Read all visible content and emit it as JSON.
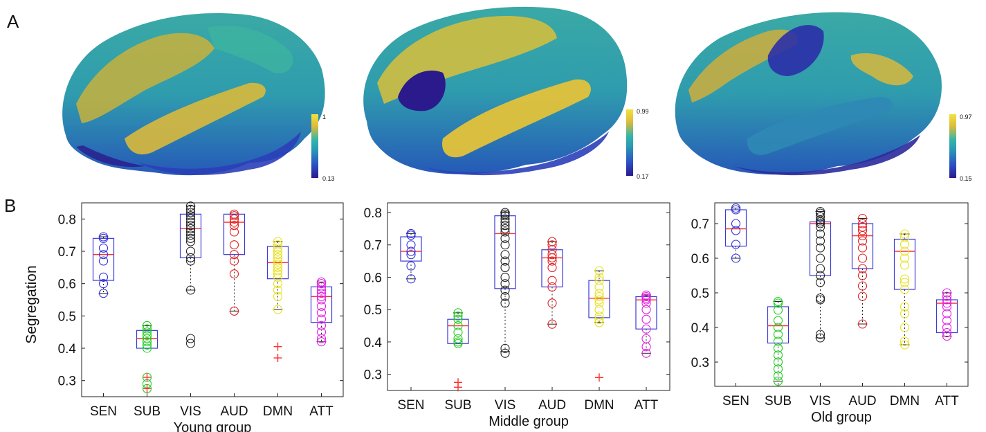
{
  "panel_labels": {
    "a": "A",
    "b": "B"
  },
  "brain_maps": [
    {
      "colorbar_max": "1",
      "colorbar_min": "0.13"
    },
    {
      "colorbar_max": "0.99",
      "colorbar_min": "0.17"
    },
    {
      "colorbar_max": "0.97",
      "colorbar_min": "0.15"
    }
  ],
  "colors": {
    "SEN": "#3030d8",
    "SUB": "#22cc22",
    "VIS": "#222222",
    "AUD": "#e02020",
    "DMN": "#e8e020",
    "ATT": "#e020e0",
    "median": "#ff3030",
    "box": "#3a3ad8",
    "colormap": [
      "#f3e23a",
      "#d9b93c",
      "#34b6a8",
      "#2a9bb3",
      "#2b4fc6",
      "#2a1a8c"
    ]
  },
  "chart_data": [
    {
      "type": "box",
      "title": "",
      "xlabel": "Young group",
      "ylabel": "Segregation",
      "ylim": [
        0.25,
        0.85
      ],
      "yticks": [
        0.3,
        0.4,
        0.5,
        0.6,
        0.7,
        0.8
      ],
      "categories": [
        "SEN",
        "SUB",
        "VIS",
        "AUD",
        "DMN",
        "ATT"
      ],
      "boxes": [
        {
          "q1": 0.61,
          "median": 0.69,
          "q3": 0.74,
          "lo": 0.57,
          "hi": 0.745,
          "points": [
            0.745,
            0.74,
            0.71,
            0.69,
            0.67,
            0.62,
            0.6,
            0.57
          ],
          "outliers": []
        },
        {
          "q1": 0.4,
          "median": 0.43,
          "q3": 0.455,
          "lo": 0.4,
          "hi": 0.47,
          "points": [
            0.47,
            0.46,
            0.45,
            0.44,
            0.43,
            0.42,
            0.41,
            0.4,
            0.31,
            0.29,
            0.275
          ],
          "outliers": [
            0.31,
            0.275
          ]
        },
        {
          "q1": 0.68,
          "median": 0.77,
          "q3": 0.815,
          "lo": 0.58,
          "hi": 0.84,
          "points": [
            0.84,
            0.83,
            0.82,
            0.81,
            0.8,
            0.79,
            0.78,
            0.77,
            0.76,
            0.75,
            0.74,
            0.73,
            0.7,
            0.68,
            0.67,
            0.58,
            0.43,
            0.415
          ],
          "outliers": []
        },
        {
          "q1": 0.69,
          "median": 0.79,
          "q3": 0.815,
          "lo": 0.515,
          "hi": 0.815,
          "points": [
            0.815,
            0.81,
            0.8,
            0.79,
            0.78,
            0.76,
            0.72,
            0.69,
            0.67,
            0.63,
            0.515
          ],
          "outliers": []
        },
        {
          "q1": 0.615,
          "median": 0.665,
          "q3": 0.715,
          "lo": 0.52,
          "hi": 0.73,
          "points": [
            0.73,
            0.72,
            0.71,
            0.7,
            0.69,
            0.68,
            0.67,
            0.66,
            0.65,
            0.64,
            0.63,
            0.62,
            0.6,
            0.58,
            0.56,
            0.52
          ],
          "outliers": [
            0.405,
            0.37
          ]
        },
        {
          "q1": 0.48,
          "median": 0.56,
          "q3": 0.59,
          "lo": 0.42,
          "hi": 0.605,
          "points": [
            0.605,
            0.6,
            0.59,
            0.58,
            0.57,
            0.56,
            0.55,
            0.53,
            0.51,
            0.49,
            0.47,
            0.45,
            0.43,
            0.42
          ],
          "outliers": []
        }
      ]
    },
    {
      "type": "box",
      "title": "",
      "xlabel": "Middle group",
      "ylabel": "",
      "ylim": [
        0.25,
        0.83
      ],
      "yticks": [
        0.3,
        0.4,
        0.5,
        0.6,
        0.7,
        0.8
      ],
      "categories": [
        "SEN",
        "SUB",
        "VIS",
        "AUD",
        "DMN",
        "ATT"
      ],
      "boxes": [
        {
          "q1": 0.65,
          "median": 0.68,
          "q3": 0.725,
          "lo": 0.595,
          "hi": 0.735,
          "points": [
            0.735,
            0.73,
            0.7,
            0.68,
            0.67,
            0.635,
            0.595
          ],
          "outliers": []
        },
        {
          "q1": 0.395,
          "median": 0.45,
          "q3": 0.47,
          "lo": 0.395,
          "hi": 0.49,
          "points": [
            0.49,
            0.48,
            0.47,
            0.45,
            0.43,
            0.41,
            0.4,
            0.395
          ],
          "outliers": [
            0.275,
            0.26
          ]
        },
        {
          "q1": 0.565,
          "median": 0.735,
          "q3": 0.79,
          "lo": 0.37,
          "hi": 0.8,
          "points": [
            0.8,
            0.795,
            0.79,
            0.78,
            0.77,
            0.76,
            0.75,
            0.74,
            0.72,
            0.7,
            0.67,
            0.65,
            0.63,
            0.6,
            0.58,
            0.56,
            0.54,
            0.52,
            0.38,
            0.365
          ],
          "outliers": []
        },
        {
          "q1": 0.57,
          "median": 0.66,
          "q3": 0.685,
          "lo": 0.455,
          "hi": 0.71,
          "points": [
            0.71,
            0.7,
            0.685,
            0.67,
            0.66,
            0.65,
            0.63,
            0.59,
            0.57,
            0.52,
            0.455
          ],
          "outliers": []
        },
        {
          "q1": 0.475,
          "median": 0.535,
          "q3": 0.59,
          "lo": 0.46,
          "hi": 0.62,
          "points": [
            0.62,
            0.6,
            0.59,
            0.57,
            0.55,
            0.54,
            0.53,
            0.52,
            0.5,
            0.48,
            0.47,
            0.46
          ],
          "outliers": [
            0.29
          ]
        },
        {
          "q1": 0.44,
          "median": 0.53,
          "q3": 0.54,
          "lo": 0.365,
          "hi": 0.545,
          "points": [
            0.545,
            0.54,
            0.535,
            0.53,
            0.52,
            0.5,
            0.47,
            0.44,
            0.41,
            0.385,
            0.365
          ],
          "outliers": []
        }
      ]
    },
    {
      "type": "box",
      "title": "",
      "xlabel": "Old group",
      "ylabel": "",
      "ylim": [
        0.23,
        0.76
      ],
      "yticks": [
        0.3,
        0.4,
        0.5,
        0.6,
        0.7
      ],
      "categories": [
        "SEN",
        "SUB",
        "VIS",
        "AUD",
        "DMN",
        "ATT"
      ],
      "boxes": [
        {
          "q1": 0.635,
          "median": 0.685,
          "q3": 0.74,
          "lo": 0.6,
          "hi": 0.745,
          "points": [
            0.745,
            0.74,
            0.7,
            0.68,
            0.64,
            0.6
          ],
          "outliers": []
        },
        {
          "q1": 0.355,
          "median": 0.405,
          "q3": 0.46,
          "lo": 0.245,
          "hi": 0.475,
          "points": [
            0.475,
            0.47,
            0.45,
            0.42,
            0.4,
            0.38,
            0.36,
            0.34,
            0.32,
            0.3,
            0.28,
            0.26,
            0.245
          ],
          "outliers": []
        },
        {
          "q1": 0.55,
          "median": 0.7,
          "q3": 0.705,
          "lo": 0.37,
          "hi": 0.735,
          "points": [
            0.735,
            0.73,
            0.72,
            0.71,
            0.705,
            0.7,
            0.69,
            0.67,
            0.65,
            0.63,
            0.6,
            0.57,
            0.55,
            0.53,
            0.485,
            0.48,
            0.38,
            0.37
          ],
          "outliers": []
        },
        {
          "q1": 0.57,
          "median": 0.665,
          "q3": 0.7,
          "lo": 0.41,
          "hi": 0.715,
          "points": [
            0.715,
            0.7,
            0.69,
            0.68,
            0.665,
            0.65,
            0.63,
            0.6,
            0.57,
            0.55,
            0.52,
            0.49,
            0.41
          ],
          "outliers": []
        },
        {
          "q1": 0.51,
          "median": 0.62,
          "q3": 0.655,
          "lo": 0.35,
          "hi": 0.67,
          "points": [
            0.67,
            0.66,
            0.64,
            0.62,
            0.6,
            0.58,
            0.54,
            0.53,
            0.51,
            0.46,
            0.44,
            0.4,
            0.36,
            0.35
          ],
          "outliers": []
        },
        {
          "q1": 0.385,
          "median": 0.47,
          "q3": 0.48,
          "lo": 0.375,
          "hi": 0.5,
          "points": [
            0.5,
            0.49,
            0.48,
            0.47,
            0.46,
            0.44,
            0.42,
            0.4,
            0.385,
            0.375
          ],
          "outliers": []
        }
      ]
    }
  ]
}
